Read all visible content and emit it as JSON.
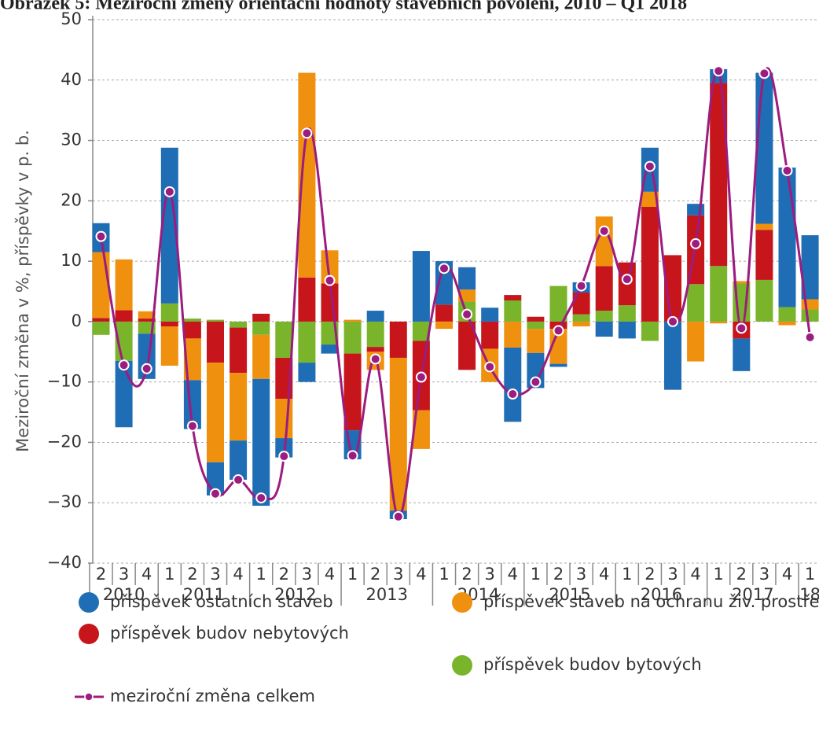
{
  "chart_data": {
    "type": "bar",
    "stacked": true,
    "title": "Obrázek 5: Meziroční změny orientační hodnoty stavebních povolení, 2010 – Q1 2018",
    "y_label": "Meziroční změna v %, příspěvky  v p. b.",
    "categories": [
      "2",
      "3",
      "4",
      "1",
      "2",
      "3",
      "4",
      "1",
      "2",
      "3",
      "4",
      "1",
      "2",
      "3",
      "4",
      "1",
      "2",
      "3",
      "4",
      "1",
      "2",
      "3",
      "4",
      "1",
      "2",
      "3",
      "4",
      "1",
      "2",
      "3",
      "4",
      "1"
    ],
    "years": [
      "2010",
      "2011",
      "2012",
      "2013",
      "2014",
      "2015",
      "2016",
      "2017",
      "18"
    ],
    "ylim": [
      -40,
      50
    ],
    "yticks": [
      {
        "value": -40,
        "label": "−40"
      },
      {
        "value": -30,
        "label": "−30"
      },
      {
        "value": -20,
        "label": "−20"
      },
      {
        "value": -10,
        "label": "−10"
      },
      0,
      10,
      20,
      30,
      40,
      50
    ],
    "grid": true,
    "series": [
      {
        "name": "příspěvek budov bytových",
        "color": "#79b42b",
        "values": [
          -2.2,
          -6.5,
          -2,
          3,
          0.5,
          0.3,
          -1,
          -2.2,
          -6,
          -6.8,
          -3.8,
          -5.3,
          -4.2,
          0,
          -3.2,
          0,
          3.3,
          0,
          3.5,
          -1.2,
          5.9,
          1.2,
          1.8,
          2.7,
          -3.2,
          0,
          6.2,
          9.2,
          6.3,
          6.9,
          2.4,
          2
        ]
      },
      {
        "name": "příspěvek budov nebytových",
        "color": "#c6161c",
        "values": [
          0.6,
          1.9,
          0.5,
          -0.8,
          -2.8,
          -6.8,
          -7.5,
          1.3,
          -6.8,
          7.3,
          6.3,
          -12.7,
          -0.8,
          -6,
          -11.5,
          2.8,
          -8,
          -4.5,
          0.9,
          0.8,
          -1.2,
          3.6,
          7.4,
          7.1,
          19,
          11,
          11.4,
          30.3,
          -2.8,
          8.3,
          0,
          0
        ]
      },
      {
        "name": "příspěvek staveb na ochranu živ. prostředí",
        "color": "#f0900f",
        "values": [
          10.9,
          8.4,
          1.2,
          -6.5,
          -6.9,
          -16.5,
          -11.2,
          -7.3,
          -6.5,
          33.9,
          5.5,
          0.3,
          -3,
          -25.3,
          -6.4,
          -1.2,
          2,
          -5.5,
          -4.3,
          -4,
          -5.8,
          -0.8,
          8.2,
          0,
          2.5,
          0,
          -6.6,
          -0.3,
          0.4,
          1,
          -0.6,
          1.7
        ]
      },
      {
        "name": "příspěvek ostatních staveb",
        "color": "#1f6db4",
        "values": [
          4.8,
          -11,
          -7.5,
          25.8,
          -8.1,
          -5.5,
          -6.5,
          -21,
          -3.2,
          -3.2,
          -1.5,
          -4.8,
          1.8,
          -1.4,
          11.7,
          7.2,
          3.7,
          2.3,
          -12.3,
          -5.8,
          -0.5,
          1.7,
          -2.5,
          -2.8,
          7.3,
          -11.3,
          1.9,
          2.3,
          -5.4,
          25,
          23.1,
          10.6
        ]
      },
      {
        "name": "meziroční změna celkem",
        "type": "line",
        "color": "#9c1c80",
        "values": [
          14.1,
          -7.2,
          -7.8,
          21.5,
          -17.3,
          -28.5,
          -26.2,
          -29.2,
          -22.3,
          31.2,
          6.8,
          -22.2,
          -6.2,
          -32.3,
          -9.2,
          8.8,
          1.2,
          -7.5,
          -12,
          -10,
          -1.5,
          5.9,
          15,
          7,
          25.7,
          0,
          12.9,
          41.5,
          -1.1,
          41.1,
          25,
          -2.6
        ]
      }
    ]
  }
}
